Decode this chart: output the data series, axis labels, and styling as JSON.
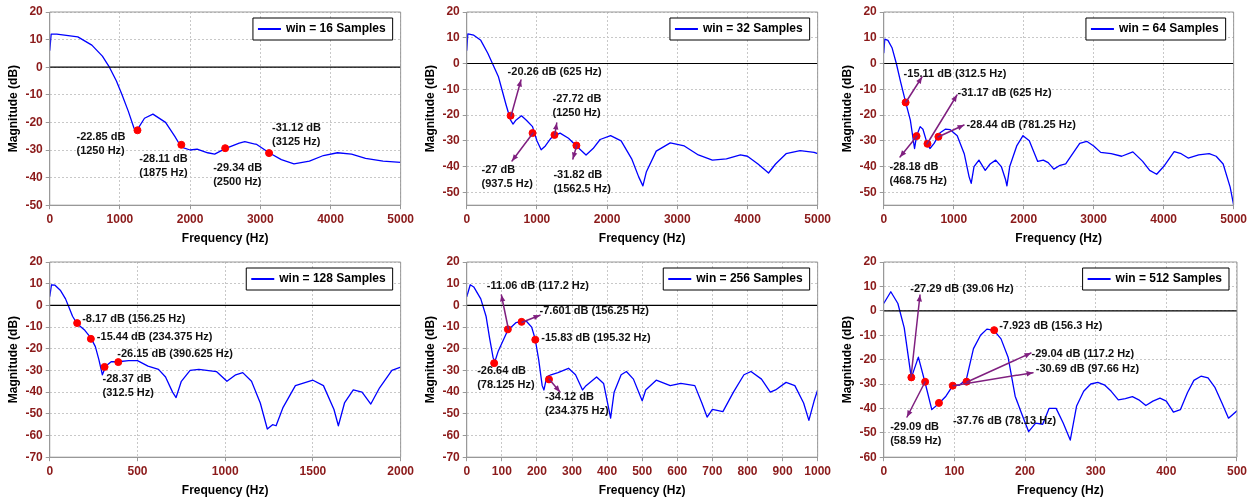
{
  "chart_data": [
    {
      "type": "line",
      "xlabel": "Frequency (Hz)",
      "ylabel": "Magnitude (dB)",
      "xlim": [
        0,
        5000
      ],
      "xticks": [
        0,
        1000,
        2000,
        3000,
        4000,
        5000
      ],
      "ylim": [
        -50,
        20
      ],
      "yticks": [
        -50,
        -40,
        -30,
        -20,
        -10,
        0,
        10,
        20
      ],
      "grid": true,
      "legend": "top right",
      "series": [
        {
          "name": "win = 16 Samples",
          "color": "#0000ff",
          "x": [
            0,
            20,
            100,
            400,
            600,
            750,
            850,
            950,
            1030,
            1120,
            1200,
            1220,
            1250,
            1350,
            1470,
            1650,
            1780,
            1875,
            2000,
            2100,
            2250,
            2350,
            2500,
            2700,
            2780,
            2950,
            3125,
            3300,
            3480,
            3700,
            3900,
            4100,
            4300,
            4500,
            4750,
            5000
          ],
          "values": [
            6,
            12,
            12,
            11,
            8,
            4,
            0,
            -5,
            -10,
            -16,
            -22,
            -23,
            -22.5,
            -18.5,
            -17,
            -20,
            -25,
            -29,
            -30,
            -29.7,
            -31,
            -31.5,
            -29.5,
            -27.5,
            -27,
            -28,
            -31,
            -33.5,
            -35,
            -34,
            -32,
            -31,
            -31.5,
            -33,
            -34,
            -34.5
          ]
        },
        {
          "type": "scatter",
          "color": "#ff0000",
          "marker": "circle",
          "x": [
            1250,
            1875,
            2500,
            3125
          ],
          "values": [
            -22.85,
            -28.11,
            -29.34,
            -31.12
          ]
        }
      ],
      "ref_lines": [
        {
          "axis": "y",
          "value": 0,
          "color": "#000000"
        }
      ],
      "annotations": [
        {
          "text": "-22.85 dB\n(1250 Hz)",
          "x": 1250,
          "y": -22.85
        },
        {
          "text": "-28.11 dB\n(1875 Hz)",
          "x": 1875,
          "y": -28.11
        },
        {
          "text": "-29.34 dB\n(2500 Hz)",
          "x": 2500,
          "y": -29.34
        },
        {
          "text": "-31.12 dB\n(3125 Hz)",
          "x": 3125,
          "y": -31.12
        }
      ]
    },
    {
      "type": "line",
      "xlabel": "Frequency (Hz)",
      "ylabel": "Magnitude (dB)",
      "xlim": [
        0,
        5000
      ],
      "xticks": [
        0,
        1000,
        2000,
        3000,
        4000,
        5000
      ],
      "ylim": [
        -55,
        20
      ],
      "yticks": [
        -50,
        -40,
        -30,
        -20,
        -10,
        0,
        10,
        20
      ],
      "grid": true,
      "legend": "top right",
      "series": [
        {
          "name": "win = 32 Samples",
          "color": "#0000ff",
          "x": [
            0,
            15,
            100,
            200,
            300,
            400,
            450,
            500,
            560,
            625,
            660,
            700,
            780,
            850,
            937.5,
            1000,
            1060,
            1120,
            1200,
            1250,
            1330,
            1450,
            1562.5,
            1700,
            1800,
            1900,
            2050,
            2200,
            2350,
            2450,
            2510,
            2560,
            2700,
            2900,
            3100,
            3300,
            3500,
            3700,
            3900,
            4000,
            4150,
            4300,
            4400,
            4550,
            4750,
            4950,
            5000
          ],
          "values": [
            5,
            11.5,
            11,
            9,
            4,
            -2,
            -5,
            -10,
            -16,
            -22,
            -23.5,
            -22,
            -20.3,
            -22,
            -24.5,
            -30,
            -33.5,
            -32,
            -29,
            -28,
            -27,
            -29,
            -32,
            -35.5,
            -33,
            -29.5,
            -28,
            -30,
            -37,
            -44,
            -47.5,
            -42,
            -34,
            -30.8,
            -32,
            -35.5,
            -37.5,
            -37,
            -35.5,
            -36,
            -39,
            -42.5,
            -39,
            -35,
            -33.8,
            -34.5,
            -35
          ]
        },
        {
          "type": "scatter",
          "color": "#ff0000",
          "marker": "circle",
          "x": [
            625,
            937.5,
            1250,
            1562.5
          ],
          "values": [
            -20.26,
            -27,
            -27.72,
            -31.82
          ]
        }
      ],
      "ref_lines": [
        {
          "axis": "y",
          "value": 0,
          "color": "#000000"
        }
      ],
      "annotations": [
        {
          "text": "-20.26 dB (625 Hz)",
          "x": 625,
          "y": -20.26
        },
        {
          "text": "-27 dB\n(937.5 Hz)",
          "x": 937.5,
          "y": -27
        },
        {
          "text": "-27.72 dB\n(1250 Hz)",
          "x": 1250,
          "y": -27.72
        },
        {
          "text": "-31.82 dB\n(1562.5 Hz)",
          "x": 1562.5,
          "y": -31.82
        }
      ]
    },
    {
      "type": "line",
      "xlabel": "Frequency (Hz)",
      "ylabel": "Magnitude (dB)",
      "xlim": [
        0,
        5000
      ],
      "xticks": [
        0,
        1000,
        2000,
        3000,
        4000,
        5000
      ],
      "ylim": [
        -55,
        20
      ],
      "yticks": [
        -50,
        -40,
        -30,
        -20,
        -10,
        0,
        10,
        20
      ],
      "grid": true,
      "legend": "top right",
      "series": [
        {
          "name": "win = 64 Samples",
          "color": "#0000ff",
          "x": [
            0,
            15,
            60,
            120,
            180,
            240,
            312.5,
            380,
            440,
            470,
            520,
            560,
            620,
            660,
            720,
            800,
            880,
            950,
            1050,
            1150,
            1220,
            1250,
            1290,
            1360,
            1450,
            1520,
            1600,
            1680,
            1740,
            1760,
            1800,
            1900,
            1990,
            2080,
            2200,
            2280,
            2350,
            2430,
            2520,
            2600,
            2700,
            2800,
            2900,
            3000,
            3100,
            3250,
            3400,
            3560,
            3700,
            3800,
            3900,
            4000,
            4150,
            4250,
            4350,
            4500,
            4650,
            4750,
            4850,
            4950,
            5000
          ],
          "values": [
            4,
            9.5,
            9,
            6,
            0,
            -7,
            -15,
            -22,
            -33,
            -28,
            -24.5,
            -25.5,
            -31,
            -33,
            -31,
            -27,
            -25.5,
            -25.7,
            -28,
            -35,
            -44,
            -46.5,
            -40,
            -37.5,
            -41.5,
            -39,
            -37.5,
            -40,
            -45,
            -47.5,
            -40,
            -32,
            -28,
            -30,
            -38,
            -37.5,
            -38.5,
            -41,
            -39.5,
            -39,
            -35,
            -31,
            -30.2,
            -32,
            -34.5,
            -35,
            -36,
            -34.3,
            -38,
            -41.5,
            -43,
            -40,
            -34.2,
            -35,
            -36.7,
            -35.5,
            -35,
            -36,
            -39,
            -48,
            -55
          ]
        },
        {
          "type": "scatter",
          "color": "#ff0000",
          "marker": "circle",
          "x": [
            312.5,
            468.75,
            625,
            781.25
          ],
          "values": [
            -15.11,
            -28.18,
            -31.17,
            -28.44
          ]
        }
      ],
      "ref_lines": [
        {
          "axis": "y",
          "value": 0,
          "color": "#000000"
        }
      ],
      "annotations": [
        {
          "text": "-15.11 dB (312.5 Hz)",
          "x": 312.5,
          "y": -15.11
        },
        {
          "text": "-28.18 dB\n(468.75 Hz)",
          "x": 468.75,
          "y": -28.18
        },
        {
          "text": "-31.17 dB (625 Hz)",
          "x": 625,
          "y": -31.17
        },
        {
          "text": "-28.44 dB (781.25 Hz)",
          "x": 781.25,
          "y": -28.44
        }
      ]
    },
    {
      "type": "line",
      "xlabel": "Frequency (Hz)",
      "ylabel": "Magnitude (dB)",
      "xlim": [
        0,
        2000
      ],
      "xticks": [
        0,
        500,
        1000,
        1500,
        2000
      ],
      "ylim": [
        -70,
        20
      ],
      "yticks": [
        -70,
        -60,
        -50,
        -40,
        -30,
        -20,
        -10,
        0,
        10,
        20
      ],
      "grid": true,
      "legend": "top right",
      "series": [
        {
          "name": "win = 128 Samples",
          "color": "#0000ff",
          "x": [
            0,
            10,
            30,
            60,
            90,
            110,
            130,
            156.25,
            200,
            234.375,
            260,
            280,
            300,
            320,
            350,
            390,
            450,
            500,
            560,
            620,
            660,
            700,
            720,
            750,
            800,
            850,
            950,
            1010,
            1060,
            1100,
            1150,
            1200,
            1240,
            1270,
            1290,
            1330,
            1400,
            1500,
            1560,
            1620,
            1645,
            1680,
            1730,
            1780,
            1830,
            1880,
            1950,
            2000
          ],
          "values": [
            4,
            9.5,
            9.3,
            7,
            3,
            -1,
            -5,
            -8.5,
            -11.5,
            -15,
            -19,
            -25,
            -32,
            -28,
            -26,
            -26,
            -25.5,
            -25.5,
            -28,
            -29.5,
            -33,
            -40,
            -42.5,
            -35,
            -30,
            -29.5,
            -30.5,
            -35,
            -32,
            -31,
            -35,
            -45,
            -57,
            -55,
            -55.5,
            -47,
            -37,
            -34.5,
            -37,
            -48,
            -55.5,
            -45,
            -39,
            -40,
            -45.5,
            -38,
            -30,
            -28.5
          ]
        },
        {
          "type": "scatter",
          "color": "#ff0000",
          "marker": "circle",
          "x": [
            156.25,
            234.375,
            312.5,
            390.625
          ],
          "values": [
            -8.17,
            -15.44,
            -28.37,
            -26.15
          ]
        }
      ],
      "ref_lines": [
        {
          "axis": "y",
          "value": 0,
          "color": "#000000"
        }
      ],
      "annotations": [
        {
          "text": "-8.17 dB (156.25 Hz)",
          "x": 156.25,
          "y": -8.17
        },
        {
          "text": "-15.44 dB (234.375 Hz)",
          "x": 234.375,
          "y": -15.44
        },
        {
          "text": "-28.37 dB\n(312.5 Hz)",
          "x": 312.5,
          "y": -28.37
        },
        {
          "text": "-26.15 dB (390.625 Hz)",
          "x": 390.625,
          "y": -26.15
        }
      ]
    },
    {
      "type": "line",
      "xlabel": "Frequency (Hz)",
      "ylabel": "Magnitude (dB)",
      "xlim": [
        0,
        1000
      ],
      "xticks": [
        0,
        100,
        200,
        300,
        400,
        500,
        600,
        700,
        800,
        900,
        1000
      ],
      "ylim": [
        -70,
        20
      ],
      "yticks": [
        -70,
        -60,
        -50,
        -40,
        -30,
        -20,
        -10,
        0,
        10,
        20
      ],
      "grid": true,
      "legend": "top right",
      "series": [
        {
          "name": "win = 256 Samples",
          "color": "#0000ff",
          "x": [
            0,
            10,
            20,
            40,
            55,
            65,
            75,
            80,
            90,
            117,
            140,
            156,
            170,
            185,
            195,
            205,
            215,
            220,
            228,
            240,
            260,
            290,
            310,
            330,
            340,
            370,
            390,
            405,
            410,
            420,
            440,
            455,
            475,
            495,
            500,
            510,
            540,
            580,
            610,
            650,
            670,
            685,
            700,
            730,
            760,
            790,
            810,
            840,
            865,
            880,
            910,
            935,
            960,
            975,
            990,
            1000
          ],
          "values": [
            4,
            9.5,
            8.5,
            3,
            -5,
            -15,
            -24,
            -26,
            -21,
            -11.5,
            -8,
            -7.5,
            -7.3,
            -10,
            -15.5,
            -25,
            -37,
            -39,
            -33,
            -32,
            -31,
            -29,
            -32,
            -39,
            -37,
            -33,
            -36,
            -48,
            -52,
            -40,
            -32,
            -30.5,
            -34,
            -42,
            -44,
            -39,
            -34.5,
            -37,
            -36,
            -37,
            -45,
            -51.5,
            -48,
            -49,
            -40,
            -32,
            -30.5,
            -34,
            -40,
            -39,
            -35.5,
            -37,
            -45,
            -53,
            -44,
            -39
          ]
        },
        {
          "type": "scatter",
          "color": "#ff0000",
          "marker": "circle",
          "x": [
            117.2,
            156.25,
            195.32,
            78.125,
            234.375
          ],
          "values": [
            -11.06,
            -7.601,
            -15.83,
            -26.64,
            -34.12
          ]
        }
      ],
      "ref_lines": [
        {
          "axis": "y",
          "value": 0,
          "color": "#000000"
        }
      ],
      "annotations": [
        {
          "text": "-11.06 dB (117.2 Hz)",
          "x": 117.2,
          "y": -11.06
        },
        {
          "text": "-7.601 dB (156.25 Hz)",
          "x": 156.25,
          "y": -7.601
        },
        {
          "text": "-15.83 dB (195.32 Hz)",
          "x": 195.32,
          "y": -15.83
        },
        {
          "text": "-26.64 dB\n(78.125 Hz)",
          "x": 78.125,
          "y": -26.64
        },
        {
          "text": "-34.12 dB\n(234.375 Hz)",
          "x": 234.375,
          "y": -34.12
        }
      ]
    },
    {
      "type": "line",
      "xlabel": "Frequency (Hz)",
      "ylabel": "Magnitude (dB)",
      "xlim": [
        0,
        500
      ],
      "xticks": [
        0,
        100,
        200,
        300,
        400,
        500
      ],
      "ylim": [
        -60,
        20
      ],
      "yticks": [
        -60,
        -50,
        -40,
        -30,
        -20,
        -10,
        0,
        10,
        20
      ],
      "grid": true,
      "legend": "top right",
      "series": [
        {
          "name": "win = 512 Samples",
          "color": "#0000ff",
          "x": [
            0,
            10,
            20,
            29,
            39,
            49,
            59,
            68,
            78,
            88,
            98,
            107,
            117,
            127,
            137,
            146,
            156,
            166,
            176,
            186,
            195,
            205,
            215,
            225,
            234,
            244,
            254,
            264,
            273,
            283,
            293,
            303,
            313,
            322,
            332,
            342,
            352,
            361,
            371,
            381,
            391,
            400,
            410,
            420,
            430,
            439,
            449,
            459,
            469,
            479,
            488,
            500
          ],
          "values": [
            3,
            7.8,
            3,
            -7,
            -27.5,
            -19,
            -30,
            -40.5,
            -38,
            -35,
            -30.6,
            -30.5,
            -28,
            -15.5,
            -10,
            -7.5,
            -8,
            -11.5,
            -19,
            -35,
            -42,
            -49.5,
            -46,
            -46.5,
            -40,
            -40,
            -46,
            -53,
            -39,
            -33,
            -30,
            -29.3,
            -30.5,
            -33,
            -36.5,
            -36,
            -35.2,
            -36.5,
            -38.8,
            -37,
            -35.8,
            -37,
            -41.5,
            -40.5,
            -33.5,
            -28.5,
            -26.8,
            -27.5,
            -31.5,
            -38,
            -44,
            -41
          ]
        },
        {
          "type": "scatter",
          "color": "#ff0000",
          "marker": "circle",
          "x": [
            39.06,
            58.59,
            78.13,
            97.66,
            117.2,
            156.3
          ],
          "values": [
            -27.29,
            -29.09,
            -37.76,
            -30.69,
            -29.04,
            -7.923
          ]
        }
      ],
      "ref_lines": [
        {
          "axis": "y",
          "value": 0,
          "color": "#000000"
        }
      ],
      "annotations": [
        {
          "text": "-27.29 dB (39.06 Hz)",
          "x": 39.06,
          "y": -27.29
        },
        {
          "text": "-29.09 dB\n(58.59 Hz)",
          "x": 58.59,
          "y": -29.09
        },
        {
          "text": "-37.76 dB (78.13 Hz)",
          "x": 78.13,
          "y": -37.76
        },
        {
          "text": "-30.69 dB (97.66 Hz)",
          "x": 97.66,
          "y": -30.69
        },
        {
          "text": "-29.04 dB (117.2 Hz)",
          "x": 117.2,
          "y": -29.04
        },
        {
          "text": "-7.923 dB (156.3 Hz)",
          "x": 156.3,
          "y": -7.923
        }
      ]
    }
  ]
}
